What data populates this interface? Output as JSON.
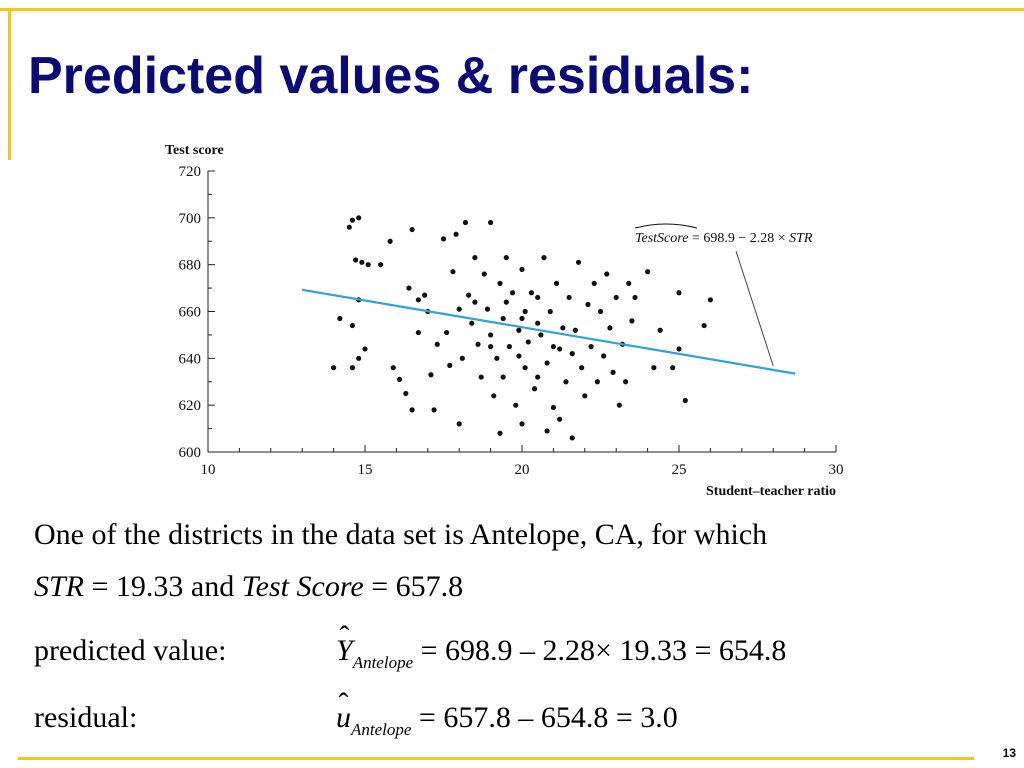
{
  "slide": {
    "title": "Predicted values & residuals:",
    "page_number": "13"
  },
  "colors": {
    "title": "#0a0a78",
    "accent_rules": "#f5c518",
    "regression_line": "#2aa4dc",
    "points": "#111111"
  },
  "chart_data": {
    "type": "scatter",
    "ylabel": "Test score",
    "xlabel": "Student–teacher ratio",
    "xlim": [
      10,
      30
    ],
    "ylim": [
      600,
      720
    ],
    "x_ticks": [
      10,
      15,
      20,
      25,
      30
    ],
    "y_ticks": [
      600,
      620,
      640,
      660,
      680,
      700,
      720
    ],
    "grid": false,
    "regression": {
      "intercept": 698.9,
      "slope": -2.28,
      "x_range": [
        13,
        28.7
      ],
      "label_prefix": "TestScore",
      "label_rest": " = 698.9 − 2.28 × ",
      "label_var": "STR",
      "pointer_to_x": 28
    },
    "points": [
      [
        14.0,
        636
      ],
      [
        14.2,
        657
      ],
      [
        14.5,
        696
      ],
      [
        14.6,
        699
      ],
      [
        14.8,
        700
      ],
      [
        14.7,
        682
      ],
      [
        14.8,
        665
      ],
      [
        14.9,
        681
      ],
      [
        14.6,
        654
      ],
      [
        14.8,
        640
      ],
      [
        15.0,
        644
      ],
      [
        14.6,
        636
      ],
      [
        15.1,
        680
      ],
      [
        15.5,
        680
      ],
      [
        15.8,
        690
      ],
      [
        15.9,
        636
      ],
      [
        16.1,
        631
      ],
      [
        16.3,
        625
      ],
      [
        16.5,
        618
      ],
      [
        16.4,
        670
      ],
      [
        16.5,
        695
      ],
      [
        16.7,
        651
      ],
      [
        16.9,
        667
      ],
      [
        16.7,
        665
      ],
      [
        17.0,
        660
      ],
      [
        17.1,
        633
      ],
      [
        17.2,
        618
      ],
      [
        17.3,
        646
      ],
      [
        17.5,
        691
      ],
      [
        17.6,
        651
      ],
      [
        17.7,
        637
      ],
      [
        17.8,
        677
      ],
      [
        17.9,
        693
      ],
      [
        18.0,
        661
      ],
      [
        18.1,
        640
      ],
      [
        18.2,
        698
      ],
      [
        18.3,
        667
      ],
      [
        18.4,
        655
      ],
      [
        18.5,
        683
      ],
      [
        18.6,
        646
      ],
      [
        18.7,
        632
      ],
      [
        18.8,
        676
      ],
      [
        18.9,
        661
      ],
      [
        19.0,
        650
      ],
      [
        19.0,
        698
      ],
      [
        19.1,
        624
      ],
      [
        19.2,
        640
      ],
      [
        19.3,
        672
      ],
      [
        19.4,
        657
      ],
      [
        19.4,
        632
      ],
      [
        19.5,
        683
      ],
      [
        19.6,
        645
      ],
      [
        19.7,
        668
      ],
      [
        19.8,
        620
      ],
      [
        19.9,
        652
      ],
      [
        19.9,
        641
      ],
      [
        20.0,
        678
      ],
      [
        20.1,
        660
      ],
      [
        20.1,
        636
      ],
      [
        20.2,
        647
      ],
      [
        20.3,
        668
      ],
      [
        20.4,
        627
      ],
      [
        20.5,
        666
      ],
      [
        20.6,
        650
      ],
      [
        20.7,
        683
      ],
      [
        20.8,
        638
      ],
      [
        20.9,
        660
      ],
      [
        21.0,
        619
      ],
      [
        21.1,
        672
      ],
      [
        21.2,
        644
      ],
      [
        21.3,
        653
      ],
      [
        21.4,
        630
      ],
      [
        21.5,
        666
      ],
      [
        21.6,
        642
      ],
      [
        21.7,
        652
      ],
      [
        21.8,
        681
      ],
      [
        21.9,
        636
      ],
      [
        22.0,
        624
      ],
      [
        22.1,
        663
      ],
      [
        22.2,
        645
      ],
      [
        22.3,
        672
      ],
      [
        22.4,
        630
      ],
      [
        22.5,
        660
      ],
      [
        22.6,
        641
      ],
      [
        22.7,
        676
      ],
      [
        22.8,
        653
      ],
      [
        22.9,
        634
      ],
      [
        23.0,
        666
      ],
      [
        23.1,
        620
      ],
      [
        23.2,
        646
      ],
      [
        23.3,
        630
      ],
      [
        23.4,
        672
      ],
      [
        23.5,
        656
      ],
      [
        23.6,
        666
      ],
      [
        24.0,
        677
      ],
      [
        24.2,
        636
      ],
      [
        24.4,
        652
      ],
      [
        24.8,
        636
      ],
      [
        25.0,
        668
      ],
      [
        25.2,
        622
      ],
      [
        25.8,
        654
      ],
      [
        26.0,
        665
      ],
      [
        25.0,
        644
      ],
      [
        18.5,
        664
      ],
      [
        19.5,
        664
      ],
      [
        20.0,
        657
      ],
      [
        20.5,
        655
      ],
      [
        21.0,
        645
      ],
      [
        19.0,
        645
      ],
      [
        20.5,
        632
      ],
      [
        19.3,
        608
      ],
      [
        20.0,
        612
      ],
      [
        20.8,
        609
      ],
      [
        21.6,
        606
      ],
      [
        18.0,
        612
      ],
      [
        21.2,
        614
      ]
    ]
  },
  "text": {
    "line1": "One of the districts in the data set is Antelope, CA, for which",
    "line2_var": "STR",
    "line2_mid": " = 19.33 and ",
    "line2_var2": "Test Score",
    "line2_end": " = 657.8",
    "predicted_label": "predicted value:",
    "predicted_sym": "Y",
    "hat": "ˆ",
    "sub": "Antelope",
    "predicted_eq": " = 698.9 – 2.28× 19.33 = 654.8",
    "residual_label": "residual:",
    "residual_sym": "u",
    "residual_eq": " = 657.8 – 654.8 = 3.0"
  }
}
